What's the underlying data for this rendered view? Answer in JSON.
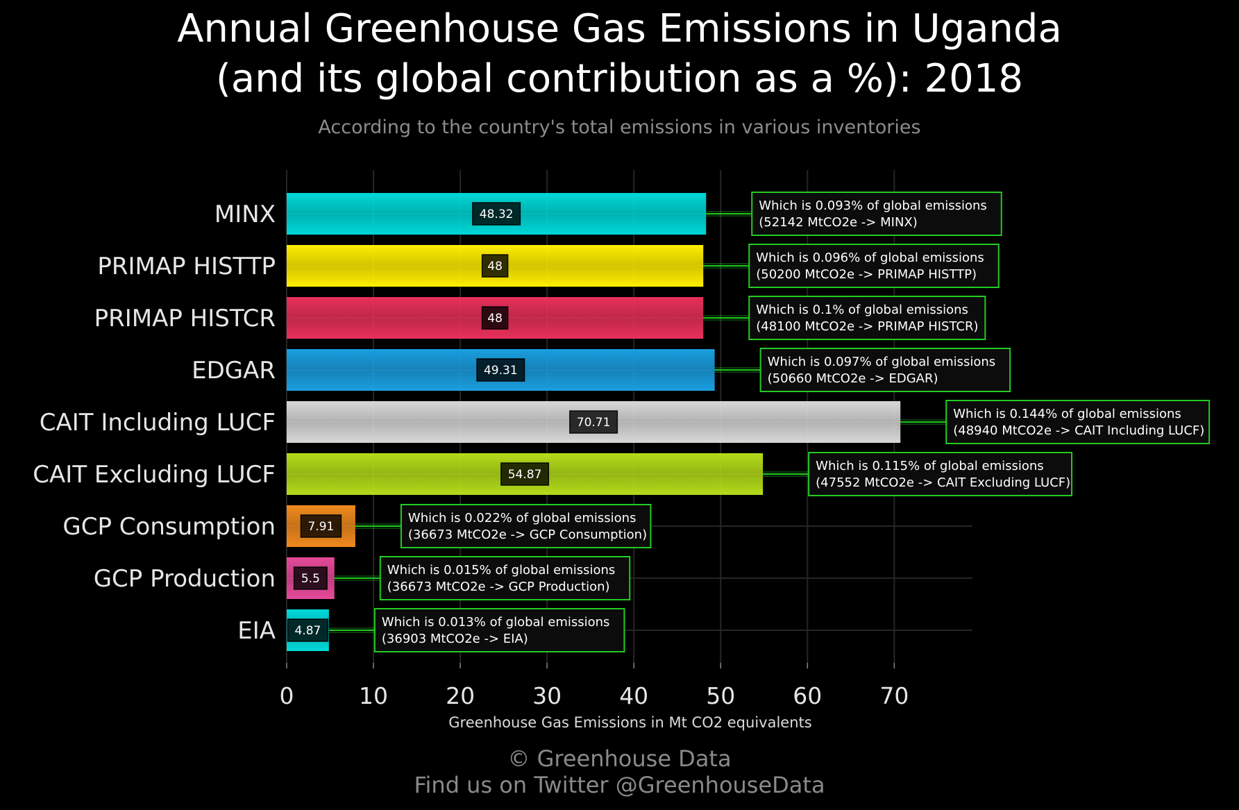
{
  "page": {
    "title_line1": "Annual Greenhouse Gas Emissions in Uganda",
    "title_line2": "(and its global contribution as a %): 2018",
    "subtitle": "According to the country's total emissions in various inventories",
    "footer_line1": "© Greenhouse Data",
    "footer_line2": "Find us on Twitter @GreenhouseData"
  },
  "chart_data": {
    "type": "bar",
    "orientation": "horizontal",
    "title": "Annual Greenhouse Gas Emissions in Uganda (and its global contribution as a %): 2018",
    "subtitle": "According to the country's total emissions in various inventories",
    "xlabel": "Greenhouse Gas Emissions in Mt CO2 equivalents",
    "ylabel": "",
    "xlim": [
      0,
      79
    ],
    "xticks": [
      0,
      10,
      20,
      30,
      40,
      50,
      60,
      70
    ],
    "grid": true,
    "categories": [
      "MINX",
      "PRIMAP HISTTP",
      "PRIMAP HISTCR",
      "EDGAR",
      "CAIT Including LUCF",
      "CAIT Excluding LUCF",
      "GCP Consumption",
      "GCP Production",
      "EIA"
    ],
    "values": [
      48.32,
      48,
      48,
      49.31,
      70.71,
      54.87,
      7.91,
      5.5,
      4.87
    ],
    "value_labels": [
      "48.32",
      "48",
      "48",
      "49.31",
      "70.71",
      "54.87",
      "7.91",
      "5.5",
      "4.87"
    ],
    "colors": [
      "#00d8d8",
      "#ffee00",
      "#e8305a",
      "#1a9ee0",
      "#d8d8d8",
      "#b4dc1a",
      "#f08a1e",
      "#e64a9a",
      "#00d8d8"
    ],
    "annotations": [
      {
        "line1": "Which is 0.093% of global emissions",
        "line2": "(52142 MtCO2e -> MINX)"
      },
      {
        "line1": "Which is 0.096% of global emissions",
        "line2": "(50200 MtCO2e -> PRIMAP HISTTP)"
      },
      {
        "line1": "Which is 0.1% of global emissions",
        "line2": "(48100 MtCO2e -> PRIMAP HISTCR)"
      },
      {
        "line1": "Which is 0.097% of global emissions",
        "line2": "(50660 MtCO2e -> EDGAR)"
      },
      {
        "line1": "Which is 0.144% of global emissions",
        "line2": "(48940 MtCO2e -> CAIT Including LUCF)"
      },
      {
        "line1": "Which is 0.115% of global emissions",
        "line2": "(47552 MtCO2e -> CAIT Excluding LUCF)"
      },
      {
        "line1": "Which is 0.022% of global emissions",
        "line2": "(36673 MtCO2e -> GCP Consumption)"
      },
      {
        "line1": "Which is 0.015% of global emissions",
        "line2": "(36673 MtCO2e -> GCP Production)"
      },
      {
        "line1": "Which is 0.013% of global emissions",
        "line2": "(36903 MtCO2e -> EIA)"
      }
    ],
    "accent_color": "#22cc22"
  }
}
